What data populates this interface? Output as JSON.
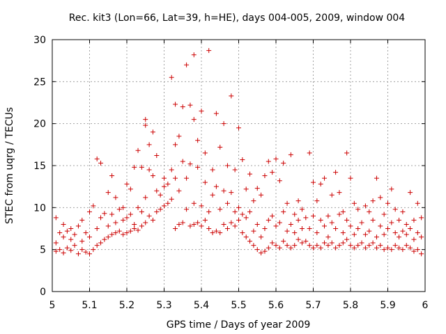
{
  "chart_data": {
    "type": "scatter",
    "title": "Rec. kit3 (Lon=66, Lat=39, h=HE), days 004-005, 2009, window 004",
    "xlabel": "GPS time / Days of year 2009",
    "ylabel": "STEC from uqrg / TECUs",
    "xlim": [
      5,
      6
    ],
    "ylim": [
      0,
      30
    ],
    "xticks": [
      "5",
      "5.1",
      "5.2",
      "5.3",
      "5.4",
      "5.5",
      "5.6",
      "5.7",
      "5.8",
      "5.9",
      "6"
    ],
    "yticks": [
      "0",
      "5",
      "10",
      "15",
      "20",
      "25",
      "30"
    ],
    "grid": true,
    "marker": "plus",
    "color": "#cc0000",
    "series": [
      {
        "name": "STEC",
        "points": [
          [
            5.01,
            4.8
          ],
          [
            5.01,
            5.8
          ],
          [
            5.01,
            8.8
          ],
          [
            5.02,
            5.0
          ],
          [
            5.02,
            7.0
          ],
          [
            5.03,
            4.6
          ],
          [
            5.03,
            6.5
          ],
          [
            5.03,
            8.0
          ],
          [
            5.04,
            5.2
          ],
          [
            5.04,
            7.2
          ],
          [
            5.05,
            4.9
          ],
          [
            5.05,
            6.2
          ],
          [
            5.05,
            7.5
          ],
          [
            5.06,
            5.5
          ],
          [
            5.06,
            6.8
          ],
          [
            5.07,
            4.5
          ],
          [
            5.07,
            7.8
          ],
          [
            5.08,
            5.0
          ],
          [
            5.08,
            6.0
          ],
          [
            5.08,
            8.5
          ],
          [
            5.09,
            4.7
          ],
          [
            5.09,
            7.0
          ],
          [
            5.1,
            4.5
          ],
          [
            5.1,
            6.5
          ],
          [
            5.1,
            9.5
          ],
          [
            5.11,
            5.0
          ],
          [
            5.11,
            10.2
          ],
          [
            5.12,
            5.5
          ],
          [
            5.12,
            7.5
          ],
          [
            5.12,
            15.8
          ],
          [
            5.13,
            5.8
          ],
          [
            5.13,
            8.8
          ],
          [
            5.13,
            15.3
          ],
          [
            5.14,
            6.2
          ],
          [
            5.14,
            9.3
          ],
          [
            5.15,
            6.5
          ],
          [
            5.15,
            7.8
          ],
          [
            5.15,
            11.8
          ],
          [
            5.16,
            6.8
          ],
          [
            5.16,
            9.2
          ],
          [
            5.16,
            13.8
          ],
          [
            5.17,
            7.0
          ],
          [
            5.17,
            8.2
          ],
          [
            5.17,
            11.2
          ],
          [
            5.18,
            7.2
          ],
          [
            5.18,
            9.8
          ],
          [
            5.19,
            6.8
          ],
          [
            5.19,
            8.5
          ],
          [
            5.19,
            10.0
          ],
          [
            5.2,
            7.0
          ],
          [
            5.2,
            8.8
          ],
          [
            5.2,
            12.8
          ],
          [
            5.21,
            7.2
          ],
          [
            5.21,
            9.2
          ],
          [
            5.21,
            12.2
          ],
          [
            5.22,
            7.5
          ],
          [
            5.22,
            8.0
          ],
          [
            5.22,
            14.8
          ],
          [
            5.23,
            7.3
          ],
          [
            5.23,
            10.0
          ],
          [
            5.23,
            16.8
          ],
          [
            5.24,
            7.8
          ],
          [
            5.24,
            9.5
          ],
          [
            5.24,
            14.8
          ],
          [
            5.25,
            8.2
          ],
          [
            5.25,
            11.2
          ],
          [
            5.25,
            19.8
          ],
          [
            5.25,
            20.5
          ],
          [
            5.26,
            9.0
          ],
          [
            5.26,
            14.5
          ],
          [
            5.26,
            17.5
          ],
          [
            5.27,
            8.5
          ],
          [
            5.27,
            13.8
          ],
          [
            5.27,
            19.0
          ],
          [
            5.28,
            9.5
          ],
          [
            5.28,
            12.0
          ],
          [
            5.28,
            16.2
          ],
          [
            5.29,
            9.8
          ],
          [
            5.29,
            11.5
          ],
          [
            5.3,
            10.2
          ],
          [
            5.3,
            12.5
          ],
          [
            5.3,
            13.5
          ],
          [
            5.31,
            10.5
          ],
          [
            5.31,
            12.8
          ],
          [
            5.32,
            11.0
          ],
          [
            5.32,
            14.5
          ],
          [
            5.32,
            25.5
          ],
          [
            5.33,
            7.5
          ],
          [
            5.33,
            13.5
          ],
          [
            5.33,
            17.5
          ],
          [
            5.33,
            22.3
          ],
          [
            5.34,
            8.0
          ],
          [
            5.34,
            12.0
          ],
          [
            5.34,
            18.5
          ],
          [
            5.35,
            8.2
          ],
          [
            5.35,
            15.5
          ],
          [
            5.35,
            22.0
          ],
          [
            5.36,
            9.8
          ],
          [
            5.36,
            13.5
          ],
          [
            5.36,
            27.0
          ],
          [
            5.37,
            7.8
          ],
          [
            5.37,
            15.2
          ],
          [
            5.37,
            22.2
          ],
          [
            5.38,
            8.0
          ],
          [
            5.38,
            10.5
          ],
          [
            5.38,
            20.5
          ],
          [
            5.38,
            28.2
          ],
          [
            5.39,
            8.2
          ],
          [
            5.39,
            14.8
          ],
          [
            5.39,
            18.0
          ],
          [
            5.4,
            7.8
          ],
          [
            5.4,
            10.2
          ],
          [
            5.4,
            21.5
          ],
          [
            5.41,
            8.5
          ],
          [
            5.41,
            13.0
          ],
          [
            5.41,
            16.5
          ],
          [
            5.42,
            7.5
          ],
          [
            5.42,
            9.5
          ],
          [
            5.42,
            28.7
          ],
          [
            5.43,
            7.0
          ],
          [
            5.43,
            11.5
          ],
          [
            5.43,
            14.5
          ],
          [
            5.44,
            7.2
          ],
          [
            5.44,
            12.5
          ],
          [
            5.44,
            21.2
          ],
          [
            5.45,
            7.0
          ],
          [
            5.45,
            9.8
          ],
          [
            5.45,
            17.2
          ],
          [
            5.46,
            8.0
          ],
          [
            5.46,
            12.0
          ],
          [
            5.46,
            20.0
          ],
          [
            5.47,
            7.5
          ],
          [
            5.47,
            10.5
          ],
          [
            5.47,
            15.0
          ],
          [
            5.48,
            8.2
          ],
          [
            5.48,
            11.8
          ],
          [
            5.48,
            23.3
          ],
          [
            5.49,
            7.8
          ],
          [
            5.49,
            9.5
          ],
          [
            5.49,
            14.5
          ],
          [
            5.5,
            8.5
          ],
          [
            5.5,
            10.0
          ],
          [
            5.5,
            19.5
          ],
          [
            5.51,
            7.0
          ],
          [
            5.51,
            9.2
          ],
          [
            5.51,
            15.7
          ],
          [
            5.52,
            6.5
          ],
          [
            5.52,
            8.8
          ],
          [
            5.52,
            12.2
          ],
          [
            5.53,
            6.0
          ],
          [
            5.53,
            9.5
          ],
          [
            5.53,
            14.0
          ],
          [
            5.54,
            5.5
          ],
          [
            5.54,
            7.2
          ],
          [
            5.54,
            10.8
          ],
          [
            5.55,
            5.0
          ],
          [
            5.55,
            8.0
          ],
          [
            5.55,
            12.3
          ],
          [
            5.56,
            4.6
          ],
          [
            5.56,
            6.5
          ],
          [
            5.56,
            11.5
          ],
          [
            5.57,
            4.8
          ],
          [
            5.57,
            7.5
          ],
          [
            5.57,
            13.8
          ],
          [
            5.58,
            5.2
          ],
          [
            5.58,
            8.5
          ],
          [
            5.58,
            15.5
          ],
          [
            5.59,
            5.8
          ],
          [
            5.59,
            9.0
          ],
          [
            5.59,
            14.2
          ],
          [
            5.6,
            5.5
          ],
          [
            5.6,
            7.8
          ],
          [
            5.6,
            15.8
          ],
          [
            5.61,
            5.2
          ],
          [
            5.61,
            8.2
          ],
          [
            5.61,
            13.2
          ],
          [
            5.62,
            6.0
          ],
          [
            5.62,
            9.5
          ],
          [
            5.62,
            15.3
          ],
          [
            5.63,
            5.5
          ],
          [
            5.63,
            7.2
          ],
          [
            5.63,
            10.5
          ],
          [
            5.64,
            5.2
          ],
          [
            5.64,
            8.0
          ],
          [
            5.64,
            16.3
          ],
          [
            5.65,
            5.5
          ],
          [
            5.65,
            7.0
          ],
          [
            5.65,
            9.2
          ],
          [
            5.66,
            6.2
          ],
          [
            5.66,
            8.5
          ],
          [
            5.66,
            10.8
          ],
          [
            5.67,
            5.8
          ],
          [
            5.67,
            7.5
          ],
          [
            5.67,
            9.8
          ],
          [
            5.68,
            6.0
          ],
          [
            5.68,
            8.8
          ],
          [
            5.69,
            5.5
          ],
          [
            5.69,
            7.5
          ],
          [
            5.69,
            16.5
          ],
          [
            5.7,
            5.2
          ],
          [
            5.7,
            9.0
          ],
          [
            5.7,
            13.0
          ],
          [
            5.71,
            5.5
          ],
          [
            5.71,
            7.0
          ],
          [
            5.71,
            10.8
          ],
          [
            5.72,
            5.2
          ],
          [
            5.72,
            8.5
          ],
          [
            5.72,
            12.8
          ],
          [
            5.73,
            5.8
          ],
          [
            5.73,
            7.8
          ],
          [
            5.73,
            13.5
          ],
          [
            5.74,
            5.5
          ],
          [
            5.74,
            6.5
          ],
          [
            5.74,
            9.0
          ],
          [
            5.75,
            5.8
          ],
          [
            5.75,
            8.2
          ],
          [
            5.75,
            11.5
          ],
          [
            5.76,
            5.2
          ],
          [
            5.76,
            7.5
          ],
          [
            5.76,
            14.2
          ],
          [
            5.77,
            5.5
          ],
          [
            5.77,
            9.2
          ],
          [
            5.77,
            11.8
          ],
          [
            5.78,
            5.8
          ],
          [
            5.78,
            7.0
          ],
          [
            5.78,
            9.5
          ],
          [
            5.79,
            6.2
          ],
          [
            5.79,
            8.5
          ],
          [
            5.79,
            16.5
          ],
          [
            5.8,
            5.5
          ],
          [
            5.8,
            7.8
          ],
          [
            5.8,
            13.5
          ],
          [
            5.81,
            5.2
          ],
          [
            5.81,
            6.8
          ],
          [
            5.81,
            10.5
          ],
          [
            5.82,
            5.5
          ],
          [
            5.82,
            7.5
          ],
          [
            5.82,
            9.8
          ],
          [
            5.83,
            5.8
          ],
          [
            5.83,
            8.2
          ],
          [
            5.84,
            5.2
          ],
          [
            5.84,
            6.8
          ],
          [
            5.84,
            10.2
          ],
          [
            5.85,
            5.5
          ],
          [
            5.85,
            7.2
          ],
          [
            5.85,
            9.5
          ],
          [
            5.86,
            5.8
          ],
          [
            5.86,
            8.5
          ],
          [
            5.86,
            10.8
          ],
          [
            5.87,
            5.2
          ],
          [
            5.87,
            6.5
          ],
          [
            5.87,
            13.5
          ],
          [
            5.88,
            5.5
          ],
          [
            5.88,
            7.8
          ],
          [
            5.88,
            11.2
          ],
          [
            5.89,
            5.0
          ],
          [
            5.89,
            6.8
          ],
          [
            5.89,
            9.2
          ],
          [
            5.9,
            5.2
          ],
          [
            5.9,
            7.5
          ],
          [
            5.9,
            10.5
          ],
          [
            5.91,
            5.0
          ],
          [
            5.91,
            8.2
          ],
          [
            5.91,
            12.2
          ],
          [
            5.92,
            5.5
          ],
          [
            5.92,
            7.0
          ],
          [
            5.92,
            9.8
          ],
          [
            5.93,
            5.2
          ],
          [
            5.93,
            6.5
          ],
          [
            5.93,
            8.5
          ],
          [
            5.94,
            5.0
          ],
          [
            5.94,
            7.2
          ],
          [
            5.94,
            9.5
          ],
          [
            5.95,
            5.5
          ],
          [
            5.95,
            6.8
          ],
          [
            5.95,
            8.0
          ],
          [
            5.96,
            5.2
          ],
          [
            5.96,
            7.5
          ],
          [
            5.96,
            11.8
          ],
          [
            5.97,
            4.8
          ],
          [
            5.97,
            6.2
          ],
          [
            5.97,
            8.5
          ],
          [
            5.98,
            5.0
          ],
          [
            5.98,
            7.0
          ],
          [
            5.98,
            10.5
          ],
          [
            5.99,
            4.5
          ],
          [
            5.99,
            6.5
          ],
          [
            5.99,
            8.8
          ]
        ]
      }
    ]
  }
}
